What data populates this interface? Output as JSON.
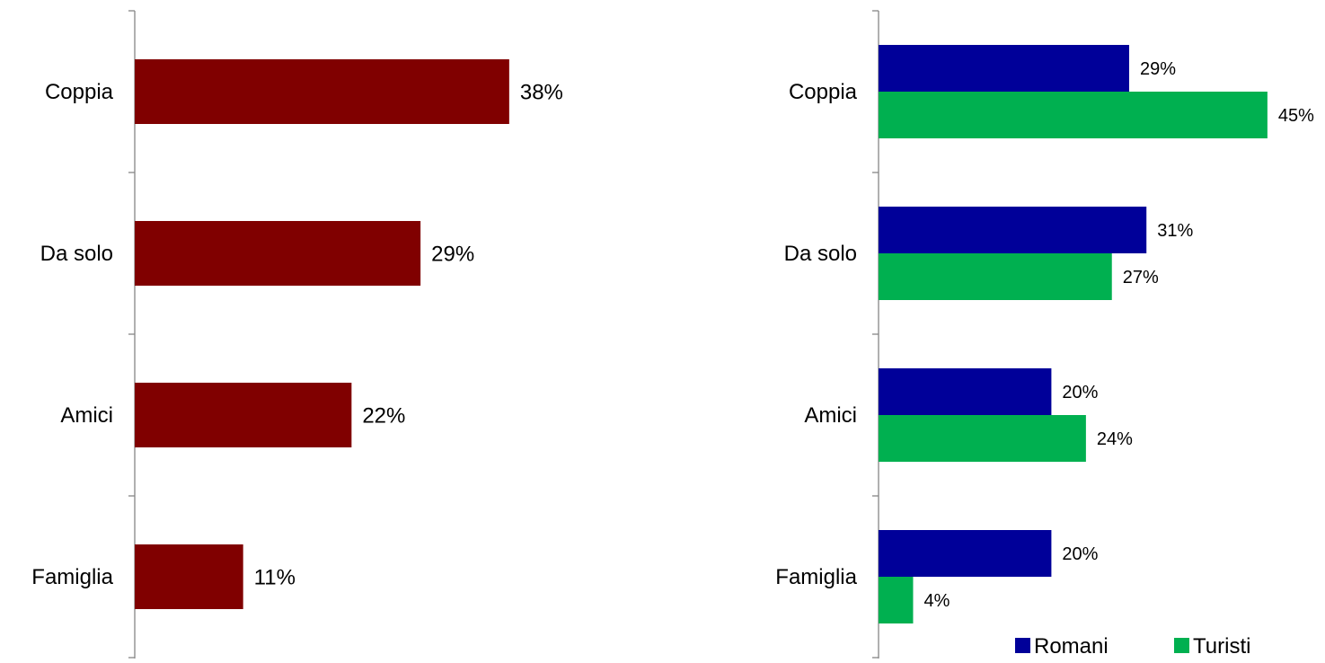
{
  "chart_data": [
    {
      "type": "bar",
      "orientation": "horizontal",
      "categories": [
        "Coppia",
        "Da solo",
        "Amici",
        "Famiglia"
      ],
      "series": [
        {
          "values": [
            38,
            29,
            22,
            11
          ],
          "labels": [
            "38%",
            "29%",
            "22%",
            "11%"
          ],
          "color": "#800000"
        }
      ],
      "xlim": [
        0,
        100
      ],
      "grid": false,
      "legend": "none"
    },
    {
      "type": "bar",
      "orientation": "horizontal",
      "categories": [
        "Coppia",
        "Da solo",
        "Amici",
        "Famiglia"
      ],
      "series": [
        {
          "name": "Romani",
          "values": [
            29,
            31,
            20,
            20
          ],
          "labels": [
            "29%",
            "31%",
            "20%",
            "20%"
          ],
          "color": "#000099"
        },
        {
          "name": "Turisti",
          "values": [
            45,
            27,
            24,
            4
          ],
          "labels": [
            "45%",
            "27%",
            "24%",
            "4%"
          ],
          "color": "#00B050"
        }
      ],
      "xlim": [
        0,
        100
      ],
      "grid": false,
      "legend": "bottom-right"
    }
  ]
}
